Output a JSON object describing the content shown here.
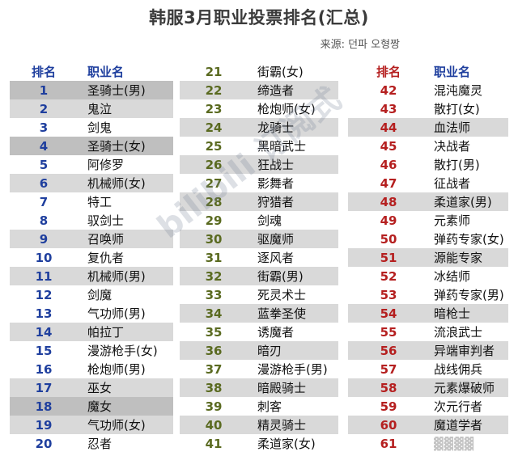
{
  "title": "韩服3月职业投票排名(汇总)",
  "source": {
    "label": "来源:",
    "value": "던파 오형짱"
  },
  "headers": {
    "rank": "排名",
    "job": "职业名"
  },
  "columns": [
    [
      {
        "rank": "1",
        "name": "圣骑士(男)"
      },
      {
        "rank": "2",
        "name": "鬼泣"
      },
      {
        "rank": "3",
        "name": "剑鬼"
      },
      {
        "rank": "4",
        "name": "圣骑士(女)"
      },
      {
        "rank": "5",
        "name": "阿修罗"
      },
      {
        "rank": "6",
        "name": "机械师(女)"
      },
      {
        "rank": "7",
        "name": "特工"
      },
      {
        "rank": "8",
        "name": "驭剑士"
      },
      {
        "rank": "9",
        "name": "召唤师"
      },
      {
        "rank": "10",
        "name": "复仇者"
      },
      {
        "rank": "11",
        "name": "机械师(男)"
      },
      {
        "rank": "12",
        "name": "剑魔"
      },
      {
        "rank": "13",
        "name": "气功师(男)"
      },
      {
        "rank": "14",
        "name": "帕拉丁"
      },
      {
        "rank": "15",
        "name": "漫游枪手(女)"
      },
      {
        "rank": "16",
        "name": "枪炮师(男)"
      },
      {
        "rank": "17",
        "name": "巫女"
      },
      {
        "rank": "18",
        "name": "魔女"
      },
      {
        "rank": "19",
        "name": "气功师(女)"
      },
      {
        "rank": "20",
        "name": "忍者"
      }
    ],
    [
      {
        "rank": "21",
        "name": "街霸(女)"
      },
      {
        "rank": "22",
        "name": "缔造者"
      },
      {
        "rank": "23",
        "name": "枪炮师(女)"
      },
      {
        "rank": "24",
        "name": "龙骑士"
      },
      {
        "rank": "25",
        "name": "黑暗武士"
      },
      {
        "rank": "26",
        "name": "狂战士"
      },
      {
        "rank": "27",
        "name": "影舞者"
      },
      {
        "rank": "28",
        "name": "狩猎者"
      },
      {
        "rank": "29",
        "name": "剑魂"
      },
      {
        "rank": "30",
        "name": "驱魔师"
      },
      {
        "rank": "31",
        "name": "逐风者"
      },
      {
        "rank": "32",
        "name": "街霸(男)"
      },
      {
        "rank": "33",
        "name": "死灵术士"
      },
      {
        "rank": "34",
        "name": "蓝拳圣使"
      },
      {
        "rank": "35",
        "name": "诱魔者"
      },
      {
        "rank": "36",
        "name": "暗刃"
      },
      {
        "rank": "37",
        "name": "漫游枪手(男)"
      },
      {
        "rank": "38",
        "name": "暗殿骑士"
      },
      {
        "rank": "39",
        "name": "刺客"
      },
      {
        "rank": "40",
        "name": "精灵骑士"
      },
      {
        "rank": "41",
        "name": "柔道家(女)"
      }
    ],
    [
      {
        "rank": "42",
        "name": "混沌魔灵"
      },
      {
        "rank": "43",
        "name": "散打(女)"
      },
      {
        "rank": "44",
        "name": "血法师"
      },
      {
        "rank": "45",
        "name": "决战者"
      },
      {
        "rank": "46",
        "name": "散打(男)"
      },
      {
        "rank": "47",
        "name": "征战者"
      },
      {
        "rank": "48",
        "name": "柔道家(男)"
      },
      {
        "rank": "49",
        "name": "元素师"
      },
      {
        "rank": "50",
        "name": "弹药专家(女)"
      },
      {
        "rank": "51",
        "name": "源能专家"
      },
      {
        "rank": "52",
        "name": "冰结师"
      },
      {
        "rank": "53",
        "name": "弹药专家(男)"
      },
      {
        "rank": "54",
        "name": "暗枪士"
      },
      {
        "rank": "55",
        "name": "流浪武士"
      },
      {
        "rank": "56",
        "name": "异端审判者"
      },
      {
        "rank": "57",
        "name": "战线佣兵"
      },
      {
        "rank": "58",
        "name": "元素爆破师"
      },
      {
        "rank": "59",
        "name": "次元行者"
      },
      {
        "rank": "60",
        "name": "魔道学者"
      },
      {
        "rank": "61",
        "name": "▓▓▓▓"
      }
    ]
  ],
  "bands": {
    "c1": {
      "dark": [
        1,
        4,
        18
      ],
      "lite": [
        2,
        6,
        9,
        11,
        14,
        17,
        19
      ]
    },
    "c2": {
      "lite": [
        22,
        24,
        26,
        28,
        30,
        32,
        34,
        36,
        38,
        40
      ]
    },
    "c3": {
      "lite": [
        44,
        48,
        51,
        54,
        56,
        58,
        60
      ]
    }
  },
  "watermark": "bilibili 订阅式"
}
